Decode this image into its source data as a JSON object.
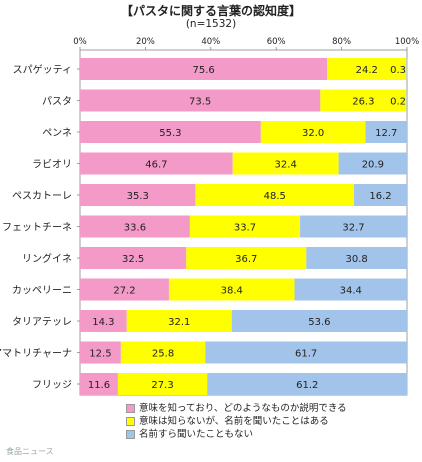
{
  "chart_data": {
    "type": "bar",
    "orientation": "horizontal",
    "stacked": true,
    "title": "【パスタに関する言葉の認知度】",
    "subtitle": "(n=1532)",
    "xlim": [
      0,
      100
    ],
    "x_ticks": [
      "0%",
      "20%",
      "40%",
      "60%",
      "80%",
      "100%"
    ],
    "categories": [
      "スパゲッティ",
      "パスタ",
      "ペンネ",
      "ラビオリ",
      "ペスカトーレ",
      "フェットチーネ",
      "リングイネ",
      "カッペリーニ",
      "タリアテッレ",
      "アマトリチャーナ",
      "フリッジ"
    ],
    "series": [
      {
        "name": "意味を知っており、どのようなものか説明できる",
        "color": "#f49ac9",
        "values": [
          75.6,
          73.5,
          55.3,
          46.7,
          35.3,
          33.6,
          32.5,
          27.2,
          14.3,
          12.5,
          11.6
        ]
      },
      {
        "name": "意味は知らないが、名前を聞いたことはある",
        "color": "#ffff00",
        "values": [
          24.2,
          26.3,
          32.0,
          32.4,
          48.5,
          33.7,
          36.7,
          38.4,
          32.1,
          25.8,
          27.3
        ]
      },
      {
        "name": "名前すら聞いたこともない",
        "color": "#a3c4ea",
        "values": [
          0.3,
          0.2,
          12.7,
          20.9,
          16.2,
          32.7,
          30.8,
          34.4,
          53.6,
          61.7,
          61.2
        ]
      }
    ],
    "value_labels": [
      [
        "75.6",
        "24.2",
        "0.3"
      ],
      [
        "73.5",
        "26.3",
        "0.2"
      ],
      [
        "55.3",
        "32.0",
        "12.7"
      ],
      [
        "46.7",
        "32.4",
        "20.9"
      ],
      [
        "35.3",
        "48.5",
        "16.2"
      ],
      [
        "33.6",
        "33.7",
        "32.7"
      ],
      [
        "32.5",
        "36.7",
        "30.8"
      ],
      [
        "27.2",
        "38.4",
        "34.4"
      ],
      [
        "14.3",
        "32.1",
        "53.6"
      ],
      [
        "12.5",
        "25.8",
        "61.7"
      ],
      [
        "11.6",
        "27.3",
        "61.2"
      ]
    ],
    "legend_position": "bottom"
  },
  "watermark": "食品ニュース"
}
